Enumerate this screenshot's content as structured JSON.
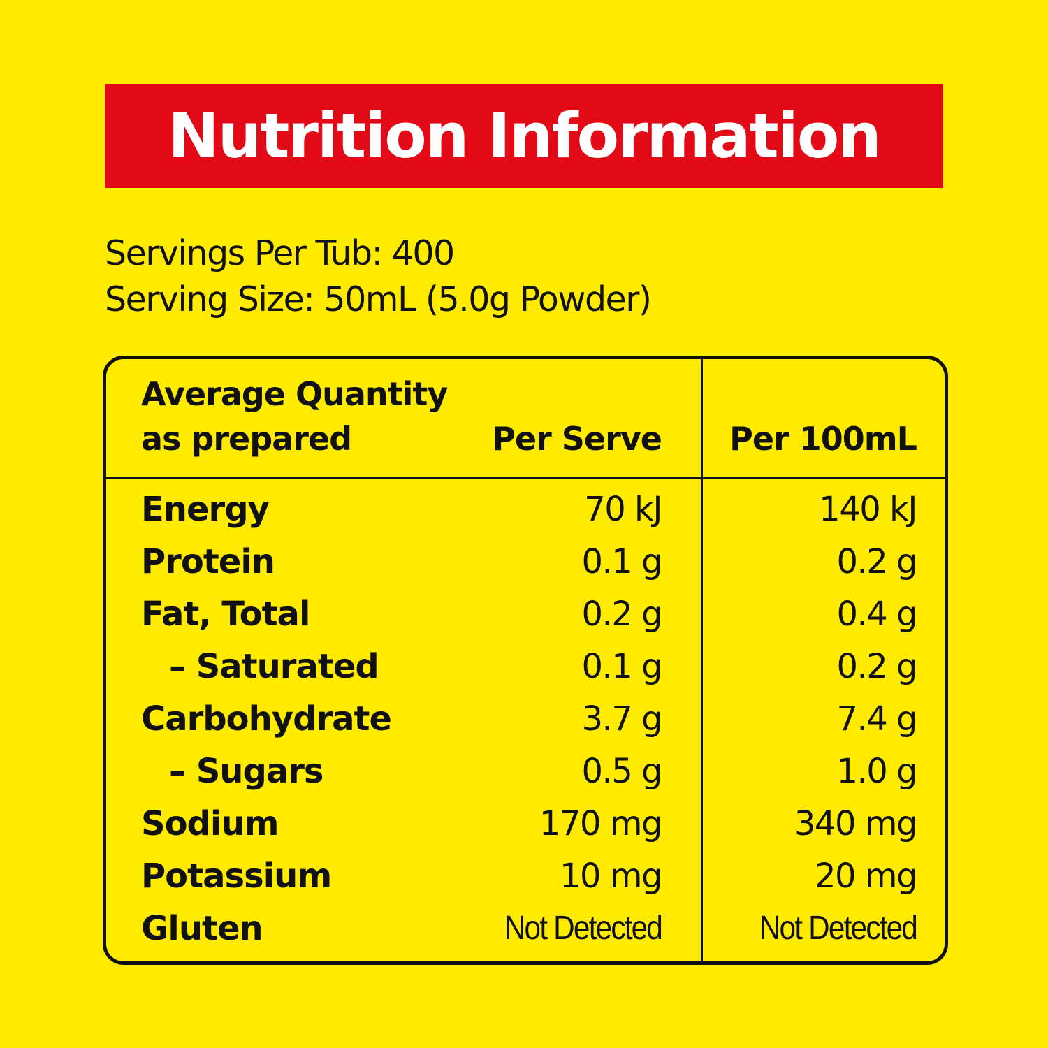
{
  "title": "Nutrition Information",
  "serving_info": {
    "servings_per_tub": "Servings Per Tub: 400",
    "serving_size": "Serving Size: 50mL (5.0g Powder)"
  },
  "table": {
    "header": {
      "label_line1": "Average Quantity",
      "label_line2": "as prepared",
      "col_per_serve": "Per Serve",
      "col_per_100ml": "Per 100mL"
    },
    "rows": [
      {
        "name": "Energy",
        "per_serve": "70 kJ",
        "per_100ml": "140 kJ",
        "sub": false
      },
      {
        "name": "Protein",
        "per_serve": "0.1 g",
        "per_100ml": "0.2 g",
        "sub": false
      },
      {
        "name": "Fat, Total",
        "per_serve": "0.2 g",
        "per_100ml": "0.4 g",
        "sub": false
      },
      {
        "name": "– Saturated",
        "per_serve": "0.1 g",
        "per_100ml": "0.2 g",
        "sub": true
      },
      {
        "name": "Carbohydrate",
        "per_serve": "3.7 g",
        "per_100ml": "7.4 g",
        "sub": false
      },
      {
        "name": "– Sugars",
        "per_serve": "0.5 g",
        "per_100ml": "1.0 g",
        "sub": true
      },
      {
        "name": "Sodium",
        "per_serve": "170 mg",
        "per_100ml": "340 mg",
        "sub": false
      },
      {
        "name": "Potassium",
        "per_serve": "10 mg",
        "per_100ml": "20 mg",
        "sub": false
      },
      {
        "name": "Gluten",
        "per_serve": "Not Detected",
        "per_100ml": "Not Detected",
        "sub": false
      }
    ]
  },
  "colors": {
    "background": "#FFEB00",
    "banner": "#E20A16",
    "banner_text": "#FFFFFF",
    "text": "#111111"
  }
}
